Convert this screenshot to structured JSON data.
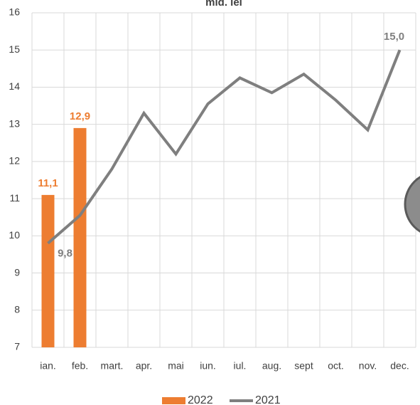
{
  "chart_data": {
    "type": "bar-line",
    "title": "mld. lei",
    "categories": [
      "ian.",
      "feb.",
      "mart.",
      "apr.",
      "mai",
      "iun.",
      "iul.",
      "aug.",
      "sept",
      "oct.",
      "nov.",
      "dec."
    ],
    "series": [
      {
        "name": "2022",
        "type": "bar",
        "color": "#ed7d31",
        "values": [
          11.1,
          12.9,
          null,
          null,
          null,
          null,
          null,
          null,
          null,
          null,
          null,
          null
        ],
        "value_labels": [
          "11,1",
          "12,9",
          null,
          null,
          null,
          null,
          null,
          null,
          null,
          null,
          null,
          null
        ]
      },
      {
        "name": "2021",
        "type": "line",
        "color": "#7f7f7f",
        "values": [
          9.8,
          10.55,
          11.8,
          13.3,
          12.2,
          13.55,
          14.25,
          13.85,
          14.35,
          13.65,
          12.85,
          15.0
        ],
        "value_labels": [
          "9,8",
          null,
          null,
          null,
          null,
          null,
          null,
          null,
          null,
          null,
          null,
          "15,0"
        ]
      }
    ],
    "ylim": [
      7,
      16
    ],
    "yticks": [
      7,
      8,
      9,
      10,
      11,
      12,
      13,
      14,
      15,
      16
    ],
    "grid": true,
    "legend": "bottom"
  }
}
